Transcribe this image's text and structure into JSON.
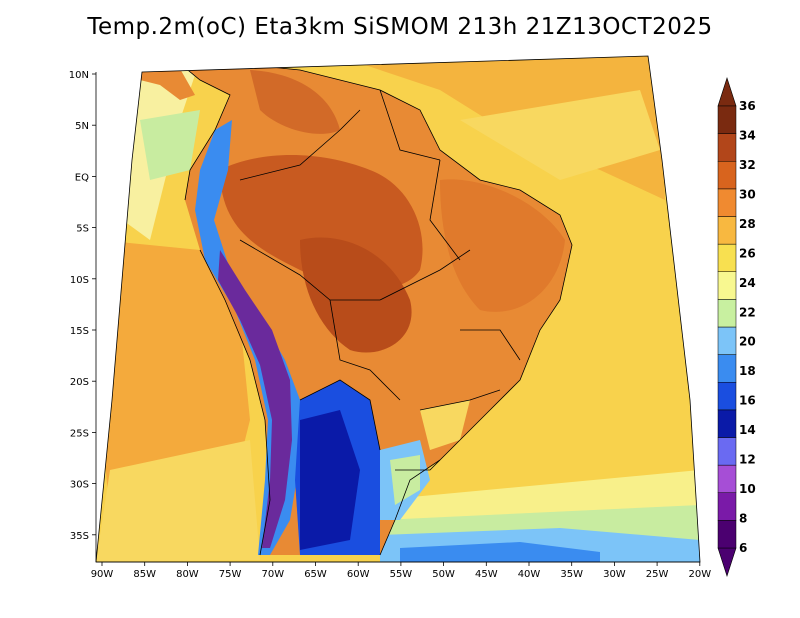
{
  "title": "Temp.2m(oC) Eta3km SiSMOM 213h 21Z13OCT2025",
  "axes": {
    "lon_labels": [
      "90W",
      "85W",
      "80W",
      "75W",
      "70W",
      "65W",
      "60W",
      "55W",
      "50W",
      "45W",
      "40W",
      "35W",
      "30W",
      "25W",
      "20W"
    ],
    "lat_labels": [
      "10N",
      "5N",
      "EQ",
      "5S",
      "10S",
      "15S",
      "20S",
      "25S",
      "30S",
      "35S"
    ]
  },
  "colorbar": {
    "labels": [
      "6",
      "8",
      "10",
      "12",
      "14",
      "16",
      "18",
      "20",
      "22",
      "24",
      "26",
      "28",
      "30",
      "32",
      "34",
      "36"
    ],
    "colors": [
      "#4b0070",
      "#7a1aa8",
      "#a64ed6",
      "#6a6af2",
      "#0a1aa8",
      "#1a4ee0",
      "#3a8cf0",
      "#7cc4f8",
      "#c8f0a0",
      "#f8f890",
      "#f8e050",
      "#f8b840",
      "#f08a30",
      "#d8641e",
      "#b2461a",
      "#7a2a10"
    ]
  },
  "legend": {
    "ocean_color": "#f8cc4a",
    "ocean_warm_color": "#f4aa3c",
    "land_hot_color": "#d26a28",
    "land_hottest_color": "#a84618"
  }
}
